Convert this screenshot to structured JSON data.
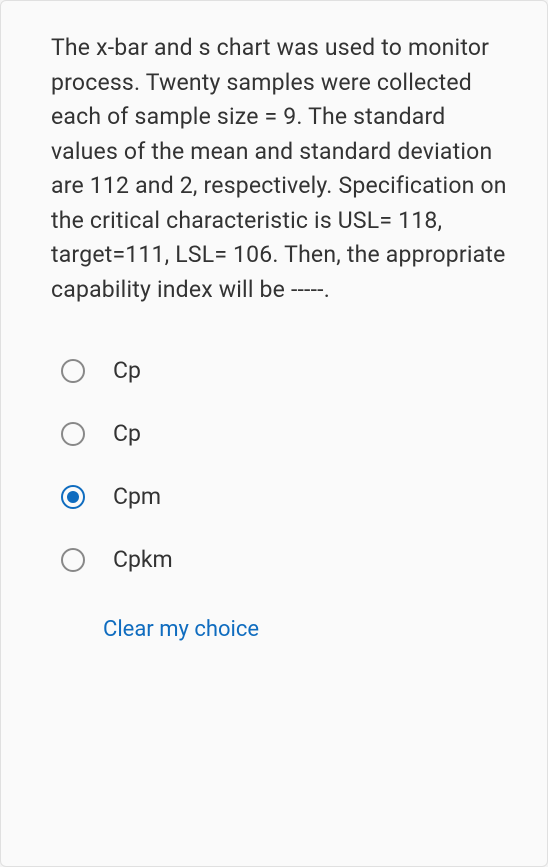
{
  "question": {
    "text": "The x-bar and s chart was used to monitor process. Twenty samples were collected each of sample size = 9. The standard values of the mean and standard deviation are  112 and 2, respectively. Specification on the critical characteristic is USL= 118, target=111,  LSL= 106. Then,  the appropriate capability index will be -----."
  },
  "options": [
    {
      "label": "Cp",
      "selected": false
    },
    {
      "label": "Cp",
      "selected": false
    },
    {
      "label": "Cpm",
      "selected": true
    },
    {
      "label": "Cpkm",
      "selected": false
    }
  ],
  "actions": {
    "clear_label": "Clear my choice"
  },
  "colors": {
    "background": "#fafafa",
    "text": "#333333",
    "accent": "#0f6cbf",
    "border": "#e0e0e0",
    "radio_border": "#888888"
  }
}
